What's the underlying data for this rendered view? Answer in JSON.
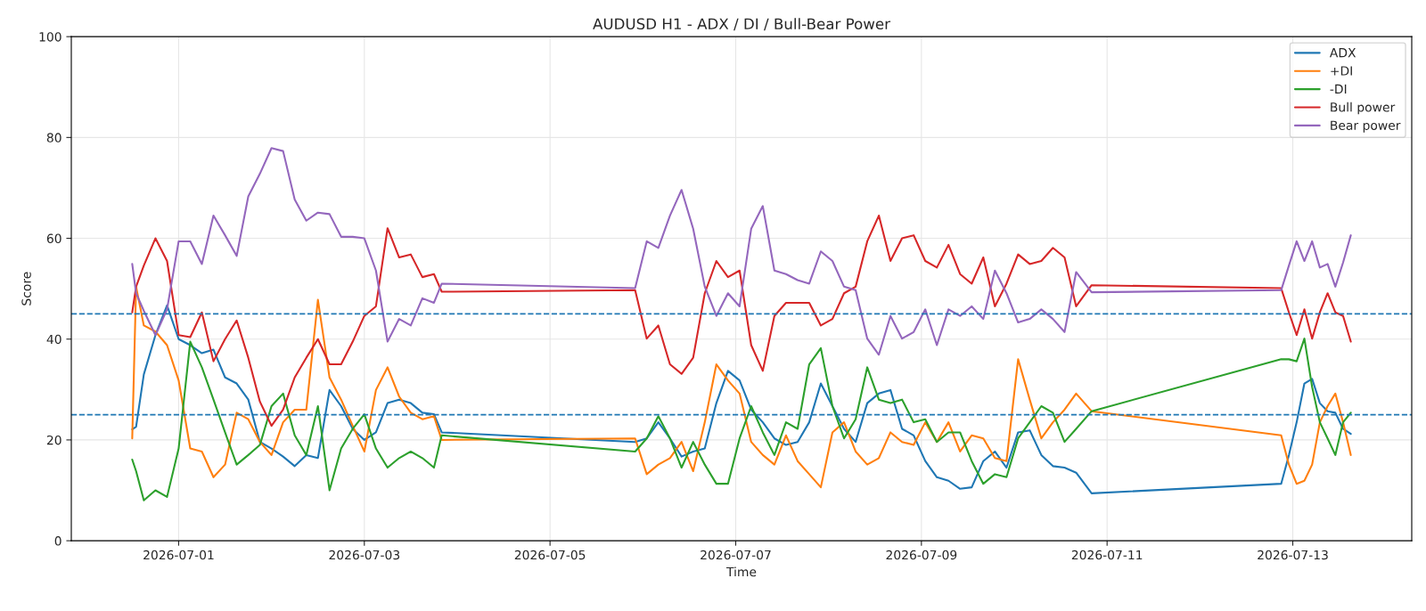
{
  "chart_data": {
    "type": "line",
    "title": "AUDUSD H1 - ADX / DI / Bull-Bear Power",
    "xlabel": "Time",
    "ylabel": "Score",
    "x": [
      "2026-06-30T12:00",
      "2026-06-30T13:00",
      "2026-06-30T15:00",
      "2026-06-30T18:00",
      "2026-06-30T21:00",
      "2026-07-01T00:00",
      "2026-07-01T03:00",
      "2026-07-01T06:00",
      "2026-07-01T09:00",
      "2026-07-01T12:00",
      "2026-07-01T15:00",
      "2026-07-01T18:00",
      "2026-07-01T21:00",
      "2026-07-02T00:00",
      "2026-07-02T03:00",
      "2026-07-02T06:00",
      "2026-07-02T09:00",
      "2026-07-02T12:00",
      "2026-07-02T15:00",
      "2026-07-02T18:00",
      "2026-07-02T21:00",
      "2026-07-03T00:00",
      "2026-07-03T03:00",
      "2026-07-03T06:00",
      "2026-07-03T09:00",
      "2026-07-03T12:00",
      "2026-07-03T15:00",
      "2026-07-03T18:00",
      "2026-07-03T20:00",
      "2026-07-05T22:00",
      "2026-07-06T01:00",
      "2026-07-06T04:00",
      "2026-07-06T07:00",
      "2026-07-06T10:00",
      "2026-07-06T13:00",
      "2026-07-06T16:00",
      "2026-07-06T19:00",
      "2026-07-06T22:00",
      "2026-07-07T01:00",
      "2026-07-07T04:00",
      "2026-07-07T07:00",
      "2026-07-07T10:00",
      "2026-07-07T13:00",
      "2026-07-07T16:00",
      "2026-07-07T19:00",
      "2026-07-07T22:00",
      "2026-07-08T01:00",
      "2026-07-08T04:00",
      "2026-07-08T07:00",
      "2026-07-08T10:00",
      "2026-07-08T13:00",
      "2026-07-08T16:00",
      "2026-07-08T19:00",
      "2026-07-08T22:00",
      "2026-07-09T01:00",
      "2026-07-09T04:00",
      "2026-07-09T07:00",
      "2026-07-09T10:00",
      "2026-07-09T13:00",
      "2026-07-09T16:00",
      "2026-07-09T19:00",
      "2026-07-09T22:00",
      "2026-07-10T01:00",
      "2026-07-10T04:00",
      "2026-07-10T07:00",
      "2026-07-10T10:00",
      "2026-07-10T13:00",
      "2026-07-10T16:00",
      "2026-07-10T20:00",
      "2026-07-12T21:00",
      "2026-07-12T23:00",
      "2026-07-13T01:00",
      "2026-07-13T03:00",
      "2026-07-13T05:00",
      "2026-07-13T07:00",
      "2026-07-13T09:00",
      "2026-07-13T11:00",
      "2026-07-13T13:00",
      "2026-07-13T15:00"
    ],
    "series": [
      {
        "name": "ADX",
        "color": "#1f77b4",
        "values": [
          22.1,
          22.6,
          33,
          40.8,
          46.7,
          40,
          38.8,
          37.2,
          37.9,
          32.4,
          31.2,
          28,
          19.6,
          18.3,
          16.7,
          14.8,
          17,
          16.4,
          29.9,
          26.7,
          22.2,
          20,
          21.5,
          27.3,
          28,
          27.3,
          25.4,
          25.1,
          21.5,
          19.6,
          20.3,
          23.5,
          20.3,
          16.7,
          17.7,
          18.3,
          27.3,
          33.7,
          31.8,
          26,
          23.5,
          20.3,
          19,
          19.6,
          23.5,
          31.2,
          26.7,
          22.2,
          19.6,
          27.3,
          29.2,
          29.9,
          22.2,
          20.9,
          15.8,
          12.6,
          11.9,
          10.3,
          10.6,
          15.8,
          17.7,
          14.5,
          21.5,
          21.9,
          17,
          14.8,
          14.5,
          13.5,
          9.4,
          11.3,
          17,
          23.5,
          31.2,
          32.1,
          27.3,
          25.7,
          25.4,
          22.2,
          21.2
        ]
      },
      {
        "name": "+DI",
        "color": "#ff7f0e",
        "values": [
          20.3,
          50.4,
          42.7,
          41.5,
          38.8,
          31.8,
          18.3,
          17.7,
          12.6,
          15.1,
          25.4,
          24.1,
          19.6,
          17,
          23.5,
          26,
          26,
          47.8,
          32.4,
          28,
          22.8,
          17.7,
          29.9,
          34.4,
          28.6,
          25.4,
          24.1,
          24.7,
          20,
          20.3,
          13.2,
          15.1,
          16.4,
          19.6,
          13.8,
          23.5,
          35,
          31.8,
          29.2,
          19.6,
          17,
          15.1,
          20.9,
          15.8,
          13.2,
          10.6,
          21.5,
          23.5,
          17.7,
          15.1,
          16.4,
          21.5,
          19.6,
          19,
          23.5,
          19.6,
          23.5,
          17.7,
          20.9,
          20.3,
          16.4,
          15.8,
          36,
          28,
          20.3,
          23.5,
          26,
          29.2,
          25.7,
          20.9,
          15.1,
          11.3,
          11.9,
          15.1,
          23.5,
          26.7,
          29.2,
          23.5,
          17
        ]
      },
      {
        "name": "-DI",
        "color": "#2ca02c",
        "values": [
          16.1,
          13.8,
          8,
          10,
          8.7,
          18.3,
          39.5,
          34.4,
          28,
          21.5,
          15.1,
          17,
          19,
          26.7,
          29.2,
          20.9,
          17,
          26.7,
          10,
          18.3,
          22.2,
          25.1,
          18.3,
          14.5,
          16.4,
          17.7,
          16.4,
          14.5,
          20.9,
          17.7,
          20.3,
          24.7,
          20.3,
          14.5,
          19.6,
          15.1,
          11.3,
          11.3,
          20.3,
          26.7,
          21.5,
          17,
          23.5,
          22.2,
          35,
          38.2,
          26.7,
          20.3,
          24.1,
          34.4,
          28,
          27.3,
          28,
          23.5,
          24.1,
          19.6,
          21.5,
          21.5,
          15.8,
          11.3,
          13.2,
          12.6,
          20.3,
          23.5,
          26.7,
          25.4,
          19.6,
          22.2,
          25.7,
          36,
          36,
          35.6,
          40.1,
          30.5,
          23.5,
          20.3,
          17,
          23.5,
          25.4
        ]
      },
      {
        "name": "Bull power",
        "color": "#d62728",
        "values": [
          45.3,
          50.4,
          54.6,
          60,
          55.5,
          40.8,
          40.4,
          45.3,
          35.6,
          40,
          43.7,
          36.3,
          27.6,
          22.8,
          26,
          32.4,
          36.3,
          40,
          35,
          35,
          39.5,
          44.6,
          46.5,
          62,
          56.2,
          56.8,
          52.3,
          52.9,
          49.4,
          49.7,
          40.1,
          42.7,
          35,
          33.1,
          36.3,
          49.1,
          55.5,
          52.3,
          53.6,
          38.8,
          33.7,
          44.6,
          47.2,
          47.2,
          47.2,
          42.7,
          44,
          49.1,
          50.4,
          59.4,
          64.5,
          55.5,
          60,
          60.6,
          55.5,
          54.2,
          58.7,
          52.9,
          51,
          56.2,
          46.5,
          51,
          56.8,
          54.9,
          55.5,
          58.1,
          56.2,
          46.5,
          50.7,
          50.1,
          45.3,
          40.8,
          45.9,
          40.1,
          45.3,
          49.1,
          45.3,
          44.6,
          39.5
        ]
      },
      {
        "name": "Bear power",
        "color": "#9467bd",
        "values": [
          54.9,
          49.1,
          45.6,
          40.8,
          45.9,
          59.4,
          59.4,
          54.9,
          64.5,
          60.6,
          56.5,
          68.3,
          72.8,
          77.9,
          77.3,
          67.7,
          63.5,
          65.1,
          64.8,
          60.3,
          60.3,
          60,
          53.6,
          39.5,
          44,
          42.7,
          48.1,
          47.2,
          51,
          50.1,
          59.4,
          58.1,
          64.5,
          69.6,
          61.9,
          50.4,
          44.6,
          49.1,
          46.5,
          61.9,
          66.4,
          53.6,
          52.9,
          51.7,
          51,
          57.4,
          55.5,
          50.4,
          49.7,
          40.1,
          36.9,
          44.6,
          40.1,
          41.4,
          45.9,
          38.8,
          45.9,
          44.6,
          46.5,
          44,
          53.6,
          49.1,
          43.3,
          44,
          45.9,
          44,
          41.4,
          53.3,
          49.3,
          49.7,
          54.6,
          59.4,
          55.5,
          59.4,
          54.2,
          54.9,
          50.4,
          55.2,
          60.6
        ]
      }
    ],
    "ref_lines": [
      {
        "axis": "y",
        "value": 45,
        "color": "#1f77b4",
        "line_style": "dashed"
      },
      {
        "axis": "y",
        "value": 25,
        "color": "#1f77b4",
        "line_style": "dashed"
      }
    ],
    "xlim": [
      "2026-06-29T20:15",
      "2026-07-14T06:45"
    ],
    "xticks": [
      "2026-07-01",
      "2026-07-03",
      "2026-07-05",
      "2026-07-07",
      "2026-07-09",
      "2026-07-11",
      "2026-07-13"
    ],
    "ylim": [
      0,
      100
    ],
    "yticks": [
      0,
      20,
      40,
      60,
      80,
      100
    ],
    "grid": true,
    "legend": "top right",
    "line_style": "solid"
  }
}
